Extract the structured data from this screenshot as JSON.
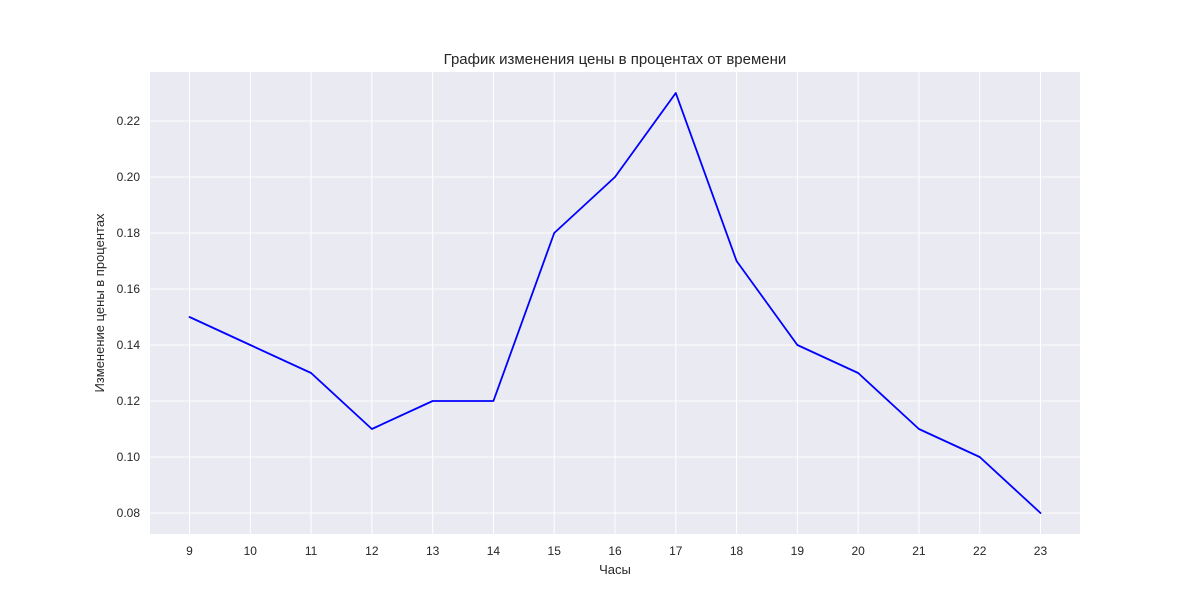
{
  "chart_data": {
    "type": "line",
    "title": "График изменения цены в процентах от времени",
    "xlabel": "Часы",
    "ylabel": "Изменение цены в процентах",
    "x": [
      9,
      10,
      11,
      12,
      13,
      14,
      15,
      16,
      17,
      18,
      19,
      20,
      21,
      22,
      23
    ],
    "series": [
      {
        "values": [
          0.15,
          0.14,
          0.13,
          0.11,
          0.12,
          0.12,
          0.18,
          0.2,
          0.23,
          0.17,
          0.14,
          0.13,
          0.11,
          0.1,
          0.08
        ]
      }
    ],
    "xlim": [
      8.35,
      23.65
    ],
    "ylim": [
      0.0725,
      0.2375
    ],
    "x_ticks": [
      "9",
      "10",
      "11",
      "12",
      "13",
      "14",
      "15",
      "16",
      "17",
      "18",
      "19",
      "20",
      "21",
      "22",
      "23"
    ],
    "y_ticks": [
      "0.08",
      "0.10",
      "0.12",
      "0.14",
      "0.16",
      "0.18",
      "0.20",
      "0.22"
    ],
    "grid": true,
    "colors": {
      "line": "#0000ff",
      "plot_background": "#eaeaf2",
      "grid": "#ffffff"
    }
  }
}
